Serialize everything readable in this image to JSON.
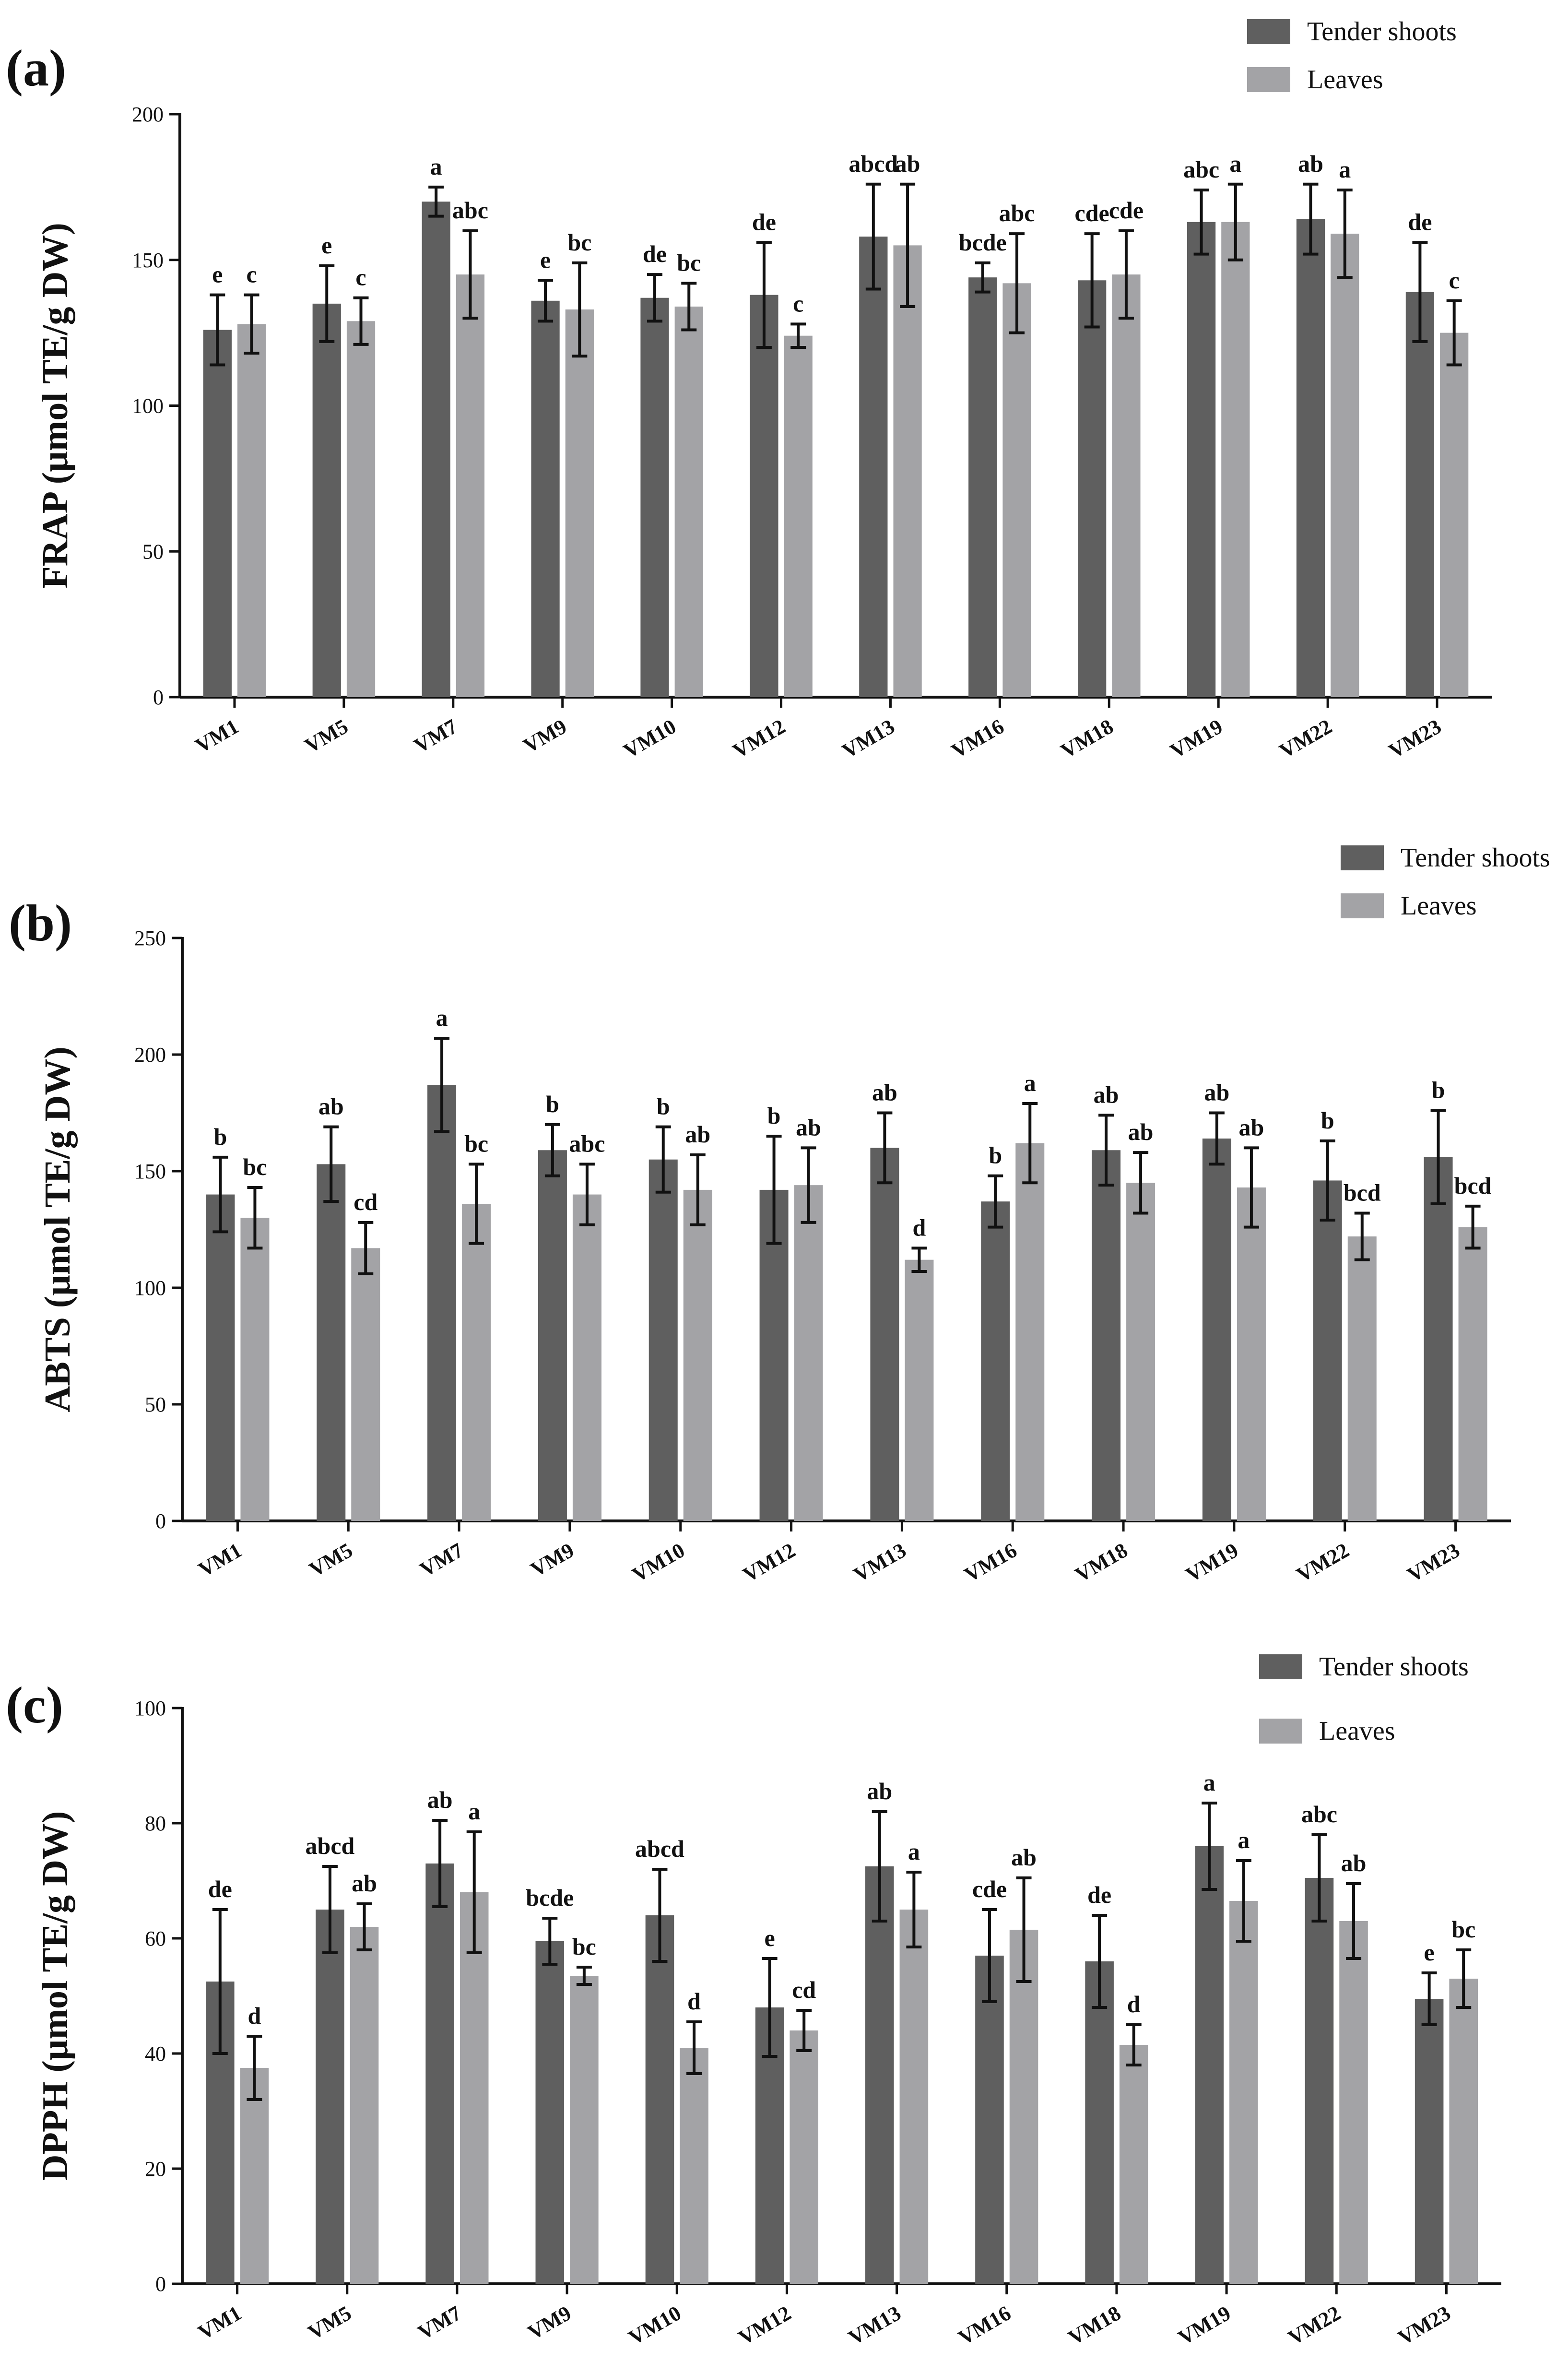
{
  "figure": {
    "panels": [
      "(a)",
      "(b)",
      "(c)"
    ]
  },
  "colors": {
    "tender_shoots": "#5f5f5f",
    "leaves": "#a3a3a6",
    "axis": "#111111"
  },
  "chart_data": [
    {
      "type": "bar",
      "panel_label": "(a)",
      "title": "",
      "xlabel": "",
      "ylabel": "FRAP (µmol TE/g DW)",
      "ylim": [
        0,
        200
      ],
      "yticks": [
        0,
        50,
        100,
        150,
        200
      ],
      "legend": {
        "placement": "top-right",
        "entries": [
          "Tender shoots",
          "Leaves"
        ]
      },
      "categories": [
        "VM1",
        "VM5",
        "VM7",
        "VM9",
        "VM10",
        "VM12",
        "VM13",
        "VM16",
        "VM18",
        "VM19",
        "VM22",
        "VM23"
      ],
      "series": [
        {
          "name": "Tender shoots",
          "values": [
            126,
            135,
            170,
            136,
            137,
            138,
            158,
            144,
            143,
            163,
            164,
            139
          ],
          "errors": [
            12,
            13,
            5,
            7,
            8,
            18,
            18,
            5,
            16,
            11,
            12,
            17
          ],
          "labels": [
            "e",
            "e",
            "a",
            "e",
            "de",
            "de",
            "abcd",
            "bcde",
            "cde",
            "abc",
            "ab",
            "de"
          ]
        },
        {
          "name": "Leaves",
          "values": [
            128,
            129,
            145,
            133,
            134,
            124,
            155,
            142,
            145,
            163,
            159,
            125
          ],
          "errors": [
            10,
            8,
            15,
            16,
            8,
            4,
            21,
            17,
            15,
            13,
            15,
            11
          ],
          "labels": [
            "c",
            "c",
            "abc",
            "bc",
            "bc",
            "c",
            "ab",
            "abc",
            "cde",
            "a",
            "a",
            "c"
          ]
        }
      ]
    },
    {
      "type": "bar",
      "panel_label": "(b)",
      "title": "",
      "xlabel": "",
      "ylabel": "ABTS (µmol TE/g DW)",
      "ylim": [
        0,
        250
      ],
      "yticks": [
        0,
        50,
        100,
        150,
        200,
        250
      ],
      "legend": {
        "placement": "top-right",
        "entries": [
          "Tender shoots",
          "Leaves"
        ]
      },
      "categories": [
        "VM1",
        "VM5",
        "VM7",
        "VM9",
        "VM10",
        "VM12",
        "VM13",
        "VM16",
        "VM18",
        "VM19",
        "VM22",
        "VM23"
      ],
      "series": [
        {
          "name": "Tender shoots",
          "values": [
            140,
            153,
            187,
            159,
            155,
            142,
            160,
            137,
            159,
            164,
            146,
            156
          ],
          "errors": [
            16,
            16,
            20,
            11,
            14,
            23,
            15,
            11,
            15,
            11,
            17,
            20
          ],
          "labels": [
            "b",
            "ab",
            "a",
            "b",
            "b",
            "b",
            "ab",
            "b",
            "ab",
            "ab",
            "b",
            "b"
          ]
        },
        {
          "name": "Leaves",
          "values": [
            130,
            117,
            136,
            140,
            142,
            144,
            112,
            162,
            145,
            143,
            122,
            126
          ],
          "errors": [
            13,
            11,
            17,
            13,
            15,
            16,
            5,
            17,
            13,
            17,
            10,
            9
          ],
          "labels": [
            "bc",
            "cd",
            "bc",
            "abc",
            "ab",
            "ab",
            "d",
            "a",
            "ab",
            "ab",
            "bcd",
            "bcd"
          ]
        }
      ]
    },
    {
      "type": "bar",
      "panel_label": "(c)",
      "title": "",
      "xlabel": "",
      "ylabel": "DPPH (µmol TE/g DW)",
      "ylim": [
        0,
        100
      ],
      "yticks": [
        0,
        20,
        40,
        60,
        80,
        100
      ],
      "legend": {
        "placement": "top-right",
        "entries": [
          "Tender shoots",
          "Leaves"
        ]
      },
      "categories": [
        "VM1",
        "VM5",
        "VM7",
        "VM9",
        "VM10",
        "VM12",
        "VM13",
        "VM16",
        "VM18",
        "VM19",
        "VM22",
        "VM23"
      ],
      "series": [
        {
          "name": "Tender shoots",
          "values": [
            52.5,
            65,
            73,
            59.5,
            64,
            48,
            72.5,
            57,
            56,
            76,
            70.5,
            49.5
          ],
          "errors": [
            12.5,
            7.5,
            7.5,
            4,
            8,
            8.5,
            9.5,
            8,
            8,
            7.5,
            7.5,
            4.5
          ],
          "labels": [
            "de",
            "abcd",
            "ab",
            "bcde",
            "abcd",
            "e",
            "ab",
            "cde",
            "de",
            "a",
            "abc",
            "e"
          ]
        },
        {
          "name": "Leaves",
          "values": [
            37.5,
            62,
            68,
            53.5,
            41,
            44,
            65,
            61.5,
            41.5,
            66.5,
            63,
            53
          ],
          "errors": [
            5.5,
            4,
            10.5,
            1.5,
            4.5,
            3.5,
            6.5,
            9,
            3.5,
            7,
            6.5,
            5
          ],
          "labels": [
            "d",
            "ab",
            "a",
            "bc",
            "d",
            "cd",
            "a",
            "ab",
            "d",
            "a",
            "ab",
            "bc"
          ]
        }
      ]
    }
  ]
}
